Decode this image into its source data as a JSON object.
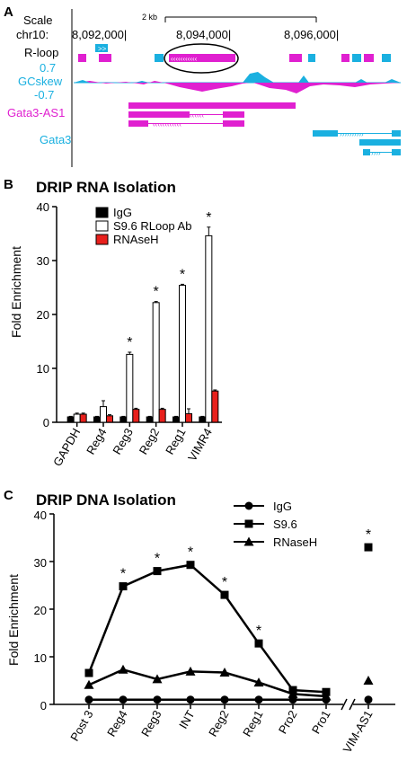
{
  "panel_a": {
    "letter": "A",
    "scale_label": "Scale",
    "chrom_label": "chr10:",
    "scale_bar_label": "2 kb",
    "coord_ticks": [
      "8,092,000|",
      "8,094,000|",
      "8,096,000|"
    ],
    "tracks": {
      "rloop": "R-loop",
      "gcskew_top": "0.7",
      "gcskew": "GCskew",
      "gcskew_bottom": "-0.7",
      "gata3_as1": "Gata3-AS1",
      "gata3": "Gata3"
    },
    "colors": {
      "magenta": "#e020d0",
      "cyan": "#1ab0e0"
    }
  },
  "panel_b": {
    "letter": "B",
    "title": "DRIP RNA Isolation",
    "ylabel": "Fold Enrichment",
    "star": "*"
  },
  "panel_c": {
    "letter": "C",
    "title": "DRIP DNA Isolation",
    "ylabel": "Fold Enrichment",
    "star": "*"
  },
  "chart_data": [
    {
      "type": "bar",
      "title": "DRIP RNA Isolation",
      "ylabel": "Fold Enrichment",
      "xlabel": "",
      "ylim": [
        0,
        40
      ],
      "yticks": [
        0,
        10,
        20,
        30,
        40
      ],
      "categories": [
        "GAPDH",
        "Reg4",
        "Reg3",
        "Reg2",
        "Reg1",
        "VIMR4"
      ],
      "series": [
        {
          "name": "IgG",
          "color": "#000000",
          "values": [
            1,
            1,
            1,
            1,
            1,
            1
          ],
          "errors": [
            0.1,
            0.1,
            0.1,
            0.1,
            0.1,
            0.1
          ]
        },
        {
          "name": "S9.6 RLoop Ab",
          "color": "#ffffff",
          "values": [
            1.5,
            2.9,
            12.6,
            22.2,
            25.4,
            34.6
          ],
          "errors": [
            0.2,
            1.1,
            0.4,
            0.2,
            0.2,
            1.6
          ]
        },
        {
          "name": "RNAseH",
          "color": "#e8201c",
          "values": [
            1.5,
            1.2,
            2.4,
            2.4,
            1.6,
            5.8
          ],
          "errors": [
            0.2,
            0.2,
            0.2,
            0.2,
            0.9,
            0.2
          ]
        }
      ],
      "significant": [
        false,
        false,
        true,
        true,
        true,
        true
      ],
      "legend": "top-left"
    },
    {
      "type": "line",
      "title": "DRIP DNA Isolation",
      "ylabel": "Fold Enrichment",
      "xlabel": "",
      "ylim": [
        0,
        40
      ],
      "yticks": [
        0,
        10,
        20,
        30,
        40
      ],
      "categories": [
        "Post 3",
        "Reg4",
        "Reg3",
        "INT",
        "Reg2",
        "Reg1",
        "Pro2",
        "Pro1"
      ],
      "separate_category": "VIM-AS1",
      "series": [
        {
          "name": "IgG",
          "marker": "circle",
          "values": [
            1,
            1,
            1,
            1,
            1,
            1,
            1,
            1
          ],
          "separate_value": 1
        },
        {
          "name": "S9.6",
          "marker": "square",
          "values": [
            6.6,
            24.8,
            28,
            29.3,
            23,
            12.8,
            3,
            2.6
          ],
          "separate_value": 33
        },
        {
          "name": "RNaseH",
          "marker": "triangle",
          "values": [
            4.1,
            7.3,
            5.3,
            6.9,
            6.7,
            4.6,
            2.2,
            1.7
          ],
          "separate_value": 5
        }
      ],
      "significant": [
        false,
        true,
        true,
        true,
        true,
        true,
        false,
        false
      ],
      "separate_significant": true,
      "legend": "top-right"
    }
  ]
}
